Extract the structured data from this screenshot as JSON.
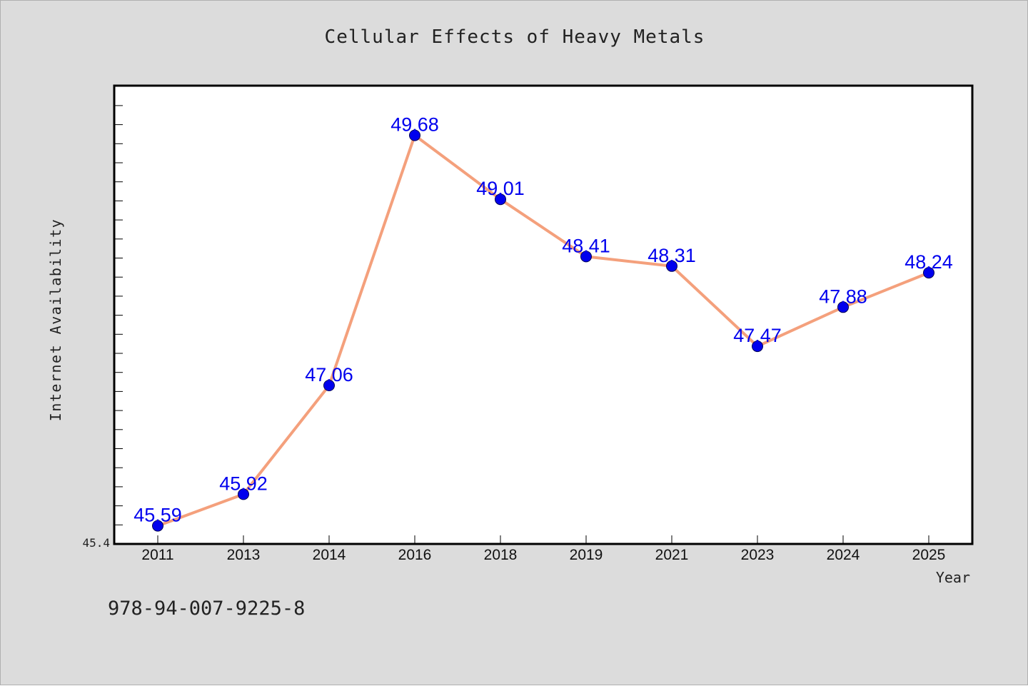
{
  "chart_data": {
    "type": "line",
    "title": "Cellular Effects of Heavy Metals",
    "xlabel": "Year",
    "ylabel": "Internet Availability",
    "categories": [
      "2011",
      "2013",
      "2014",
      "2016",
      "2018",
      "2019",
      "2021",
      "2023",
      "2024",
      "2025"
    ],
    "series": [
      {
        "values": [
          45.59,
          45.92,
          47.06,
          49.68,
          49.01,
          48.41,
          48.31,
          47.47,
          47.88,
          48.24
        ],
        "data_labels": [
          "45.59",
          "45.92",
          "47.06",
          "49.68",
          "49.01",
          "48.41",
          "48.31",
          "47.47",
          "47.88",
          "48.24"
        ],
        "line_color": "#f4a07c",
        "marker_color": "#0000ee",
        "label_color": "#0000ee"
      }
    ],
    "y_tick_labels": [
      "45.4"
    ],
    "ylim": [
      45.4,
      50.2
    ],
    "grid": false,
    "legend": "none"
  },
  "footer": {
    "text": "978-94-007-9225-8"
  }
}
